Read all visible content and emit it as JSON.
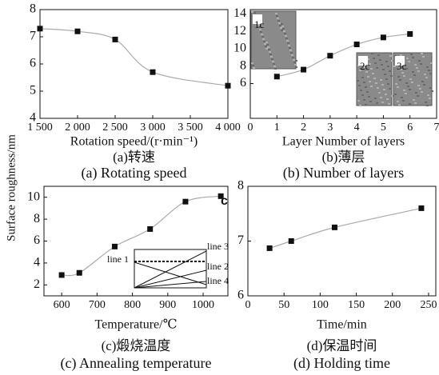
{
  "y_label": "Surface roughness/nm",
  "chart_data": [
    {
      "type": "line",
      "caption_cn": "(a)转速",
      "caption_en": "(a) Rotating speed",
      "xlabel": "Rotation speed/(r·min⁻¹)",
      "x": [
        1500,
        2000,
        2500,
        3000,
        4000
      ],
      "values": [
        7.3,
        7.2,
        6.9,
        5.7,
        5.2
      ],
      "xlim": [
        1500,
        4000
      ],
      "xticks": [
        {
          "value": 1500,
          "label": "1 500"
        },
        {
          "value": 2000,
          "label": "2 000"
        },
        {
          "value": 2500,
          "label": "2 500"
        },
        {
          "value": 3000,
          "label": "3 000"
        },
        {
          "value": 3500,
          "label": "3 500"
        },
        {
          "value": 4000,
          "label": "4 000"
        }
      ],
      "ylim": [
        4,
        8
      ],
      "yticks": [
        4,
        5,
        6,
        7,
        8
      ],
      "color": "#111111",
      "line_color": "#aaaaaa"
    },
    {
      "type": "line",
      "caption_cn": "(b)薄层",
      "caption_en": "(b) Number of layers",
      "xlabel": "Layer Number of layers",
      "x": [
        1,
        2,
        3,
        4,
        5,
        6
      ],
      "values": [
        6.8,
        7.6,
        9.2,
        10.5,
        11.3,
        11.7
      ],
      "xlim": [
        0,
        7
      ],
      "xticks": [
        0,
        1,
        2,
        3,
        4,
        5,
        6,
        7
      ],
      "ylim": [
        2,
        14.5
      ],
      "yticks": [
        6,
        8,
        10,
        12,
        14
      ],
      "color": "#111111",
      "line_color": "#aaaaaa",
      "annotations": [
        "1c",
        "2c",
        "3c"
      ]
    },
    {
      "type": "line",
      "caption_cn": "(c)煅烧温度",
      "caption_en": "(c) Annealing temperature",
      "xlabel": "Temperature/℃",
      "x": [
        600,
        650,
        750,
        850,
        950,
        1050
      ],
      "values": [
        2.9,
        3.1,
        5.5,
        7.1,
        9.6,
        10.1
      ],
      "xlim": [
        550,
        1070
      ],
      "xticks": [
        600,
        700,
        800,
        900,
        1000
      ],
      "ylim": [
        1,
        11
      ],
      "yticks": [
        2,
        4,
        6,
        8,
        10
      ],
      "color": "#111111",
      "line_color": "#aaaaaa",
      "annotations": [
        "c",
        "line 1",
        "line 2",
        "line 3",
        "line 4"
      ]
    },
    {
      "type": "line",
      "caption_cn": "(d)保温时间",
      "caption_en": "(d) Holding time",
      "xlabel": "Time/min",
      "x": [
        30,
        60,
        120,
        240
      ],
      "values": [
        6.87,
        7.0,
        7.25,
        7.6
      ],
      "xlim": [
        0,
        260
      ],
      "xticks": [
        0,
        50,
        100,
        150,
        200,
        250
      ],
      "ylim": [
        6,
        8
      ],
      "yticks": [
        6,
        7,
        8
      ],
      "color": "#111111",
      "line_color": "#aaaaaa"
    }
  ]
}
